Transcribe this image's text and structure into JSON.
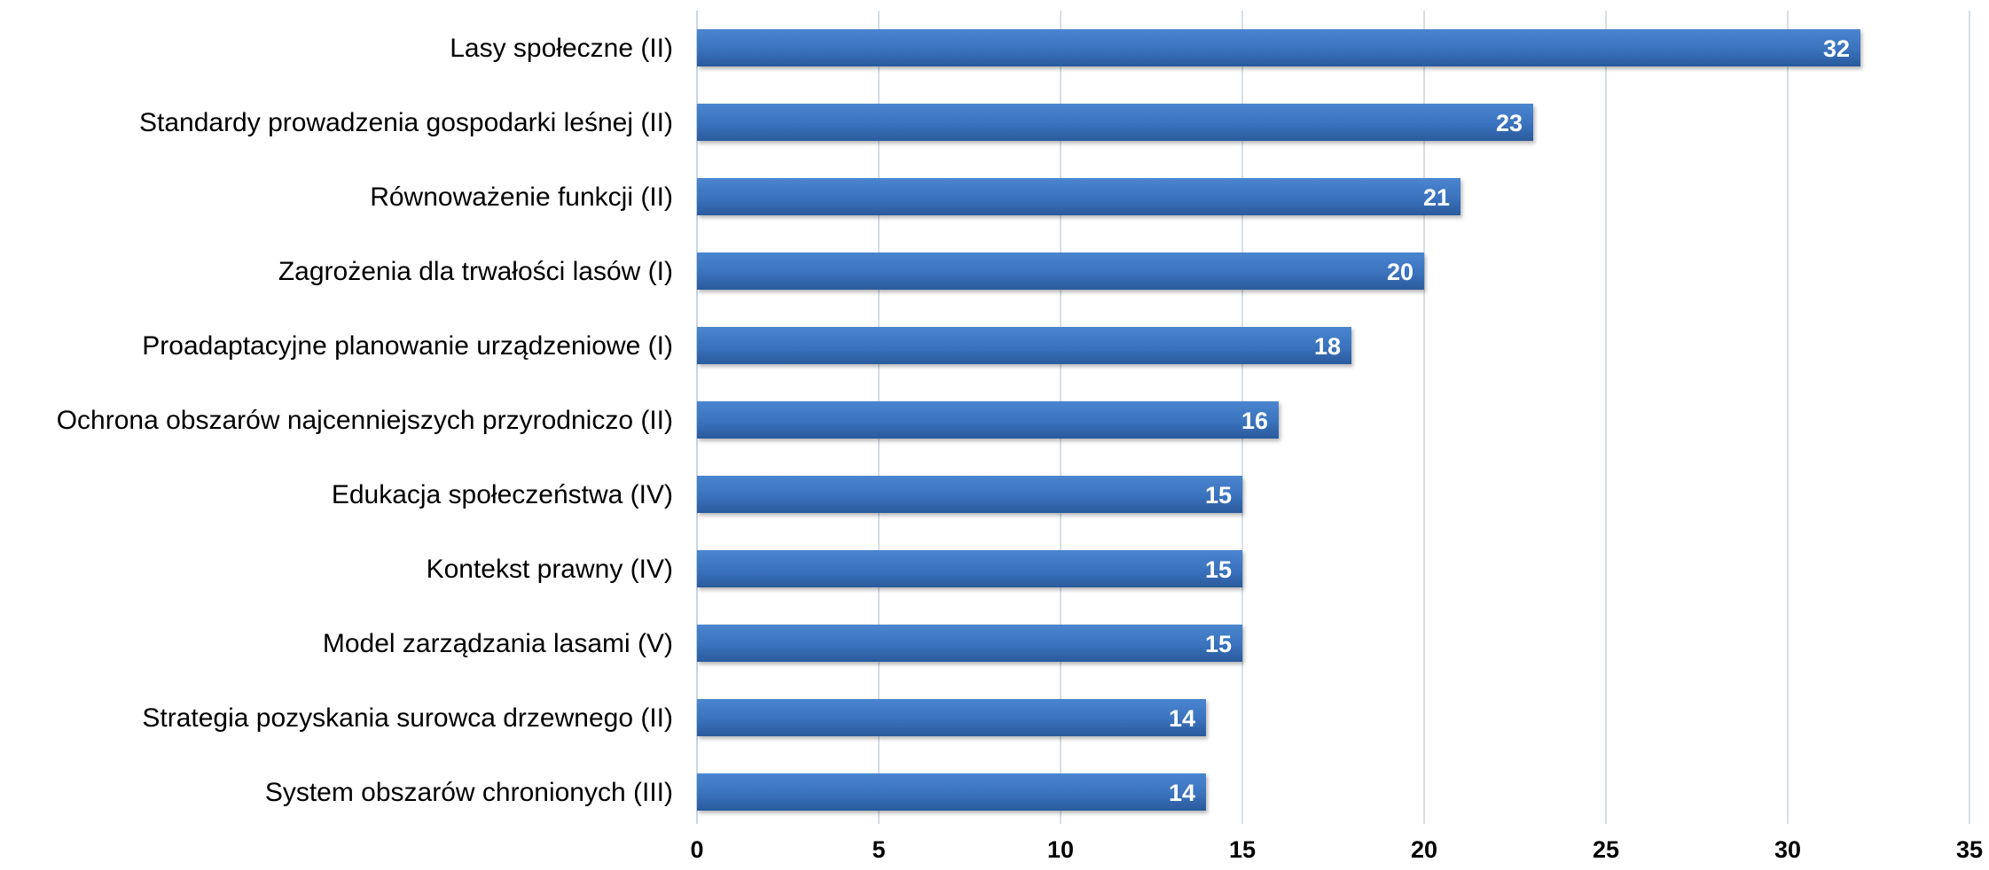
{
  "chart_data": {
    "type": "bar",
    "orientation": "horizontal",
    "categories": [
      "Lasy społeczne (II)",
      "Standardy prowadzenia gospodarki leśnej (II)",
      "Równoważenie funkcji (II)",
      "Zagrożenia dla trwałości lasów (I)",
      "Proadaptacyjne planowanie urządzeniowe (I)",
      "Ochrona obszarów najcenniejszych przyrodniczo (II)",
      "Edukacja społeczeństwa (IV)",
      "Kontekst prawny (IV)",
      "Model zarządzania lasami (V)",
      "Strategia pozyskania surowca drzewnego (II)",
      "System obszarów chronionych (III)"
    ],
    "values": [
      32,
      23,
      21,
      20,
      18,
      16,
      15,
      15,
      15,
      14,
      14
    ],
    "data_labels": [
      "32",
      "23",
      "21",
      "20",
      "18",
      "16",
      "15",
      "15",
      "15",
      "14",
      "14"
    ],
    "x_ticks": [
      "0",
      "5",
      "10",
      "15",
      "20",
      "25",
      "30",
      "35"
    ],
    "xlim": [
      0,
      35
    ],
    "grid": true,
    "legend": "none",
    "title": "",
    "xlabel": "",
    "ylabel": "",
    "colors": {
      "bar_top": "#4a85cf",
      "bar_mid": "#3a72bd",
      "bar_bottom": "#2a5a9c",
      "grid": "#d3e0ea",
      "value_text": "#ffffff",
      "label_text": "#000000"
    }
  }
}
